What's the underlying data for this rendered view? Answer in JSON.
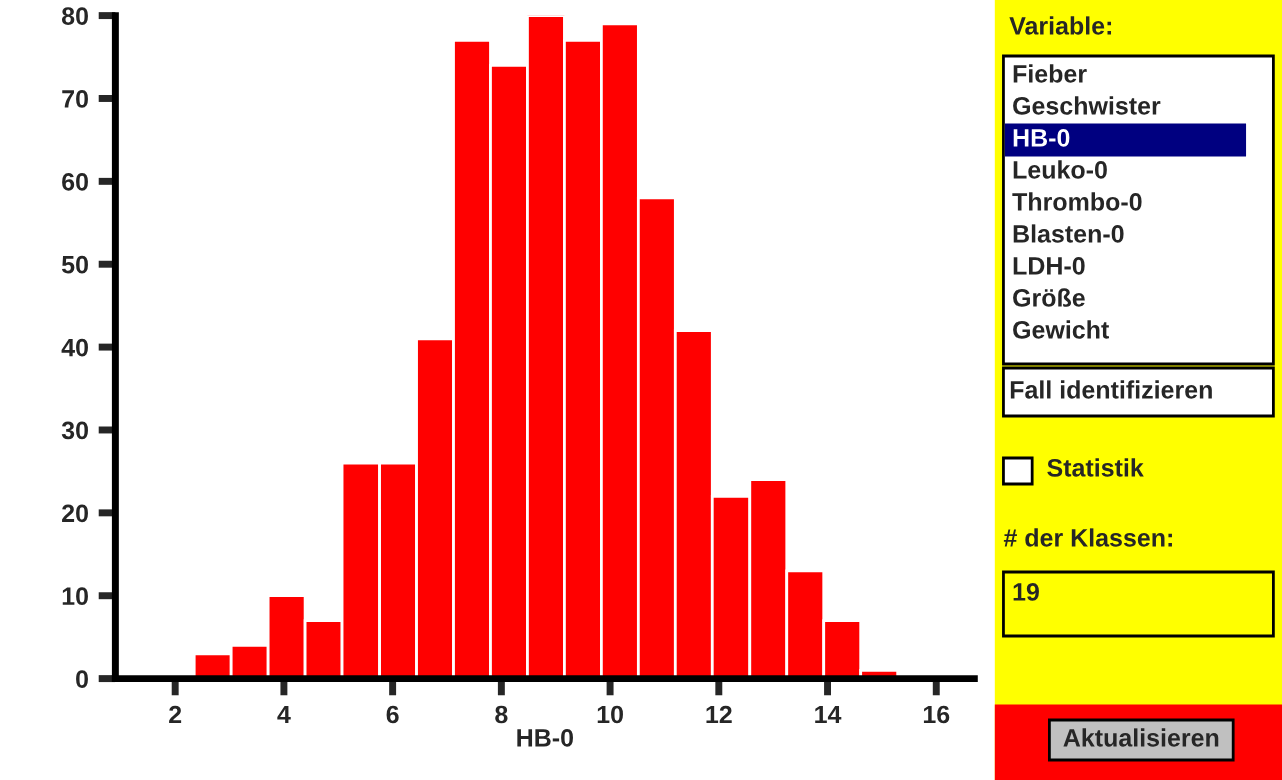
{
  "chart_data": [
    {
      "type": "histogram",
      "xlabel": "HB-0",
      "color": "#ff0000",
      "bins": [
        2.35,
        3.03,
        3.71,
        4.39,
        5.07,
        5.76,
        6.44,
        7.12,
        7.8,
        8.48,
        9.16,
        9.84,
        10.52,
        11.2,
        11.88,
        12.57,
        13.25,
        13.93,
        14.61,
        15.29
      ],
      "values": [
        3,
        4,
        10,
        7,
        26,
        26,
        41,
        77,
        74,
        80,
        77,
        79,
        58,
        42,
        22,
        24,
        13,
        7,
        1
      ],
      "xlim": [
        0.9,
        16.7
      ],
      "xticks": [
        2,
        4,
        6,
        8,
        10,
        12,
        14,
        16
      ],
      "ylim": [
        0,
        80
      ],
      "yticks": [
        0,
        10,
        20,
        30,
        40,
        50,
        60,
        70,
        80
      ],
      "grid": false
    },
    {
      "type": "other",
      "annotations": [
        "Variable:",
        "Fieber",
        "Geschwister",
        "HB-0",
        "Leuko-0",
        "Thrombo-0",
        "Blasten-0",
        "LDH-0",
        "Größe",
        "Gewicht",
        "Fall identifizieren",
        "Statistik",
        "# der Klassen:",
        "19",
        "Aktualisieren"
      ]
    }
  ]
}
